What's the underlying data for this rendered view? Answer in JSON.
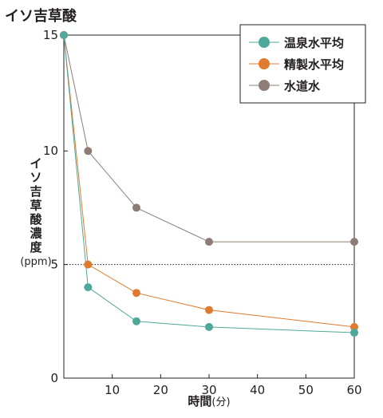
{
  "chart_data": {
    "type": "line",
    "title": "イソ吉草酸",
    "ylabel": "イソ吉草酸濃度",
    "yunit": "(ppm)",
    "xlabel_main": "時間",
    "xlabel_unit": "(分)",
    "xlim": [
      0,
      60
    ],
    "ylim": [
      0,
      15
    ],
    "x_ticks": [
      10,
      20,
      30,
      40,
      50,
      60
    ],
    "y_ticks": [
      0,
      5,
      10,
      15
    ],
    "reference_line": 5,
    "legend_position": "top-right",
    "series": [
      {
        "name": "温泉水平均",
        "color": "#4fa89a",
        "x": [
          0,
          5,
          15,
          30,
          60
        ],
        "y": [
          15.1,
          4.0,
          2.5,
          2.25,
          2.0
        ]
      },
      {
        "name": "精製水平均",
        "color": "#e07a2e",
        "x": [
          0,
          5,
          15,
          30,
          60
        ],
        "y": [
          15.1,
          5.0,
          3.75,
          3.0,
          2.25
        ]
      },
      {
        "name": "水道水",
        "color": "#8e7d76",
        "x": [
          0,
          5,
          15,
          30,
          60
        ],
        "y": [
          15.1,
          10.0,
          7.5,
          6.0,
          6.0
        ]
      }
    ]
  }
}
